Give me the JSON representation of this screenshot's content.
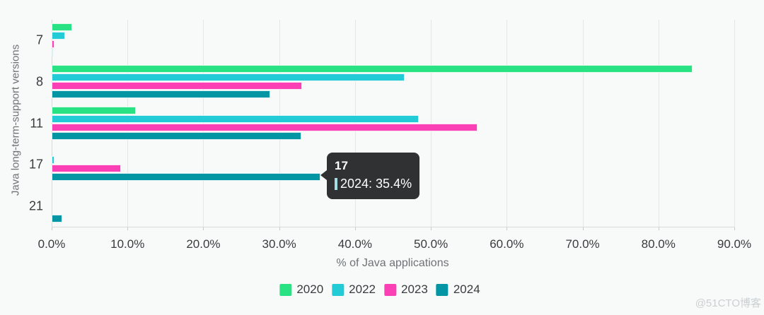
{
  "watermark": "@51CTO博客",
  "tooltip": {
    "title": "17",
    "value_label": "2024: 35.4%",
    "swatch_color": "#0295a4"
  },
  "chart_data": {
    "type": "bar",
    "orientation": "horizontal",
    "title": "",
    "xlabel": "% of Java applications",
    "ylabel": "Java long-term-support versions",
    "categories": [
      "7",
      "8",
      "11",
      "17",
      "21"
    ],
    "series": [
      {
        "name": "2020",
        "color": "#29e283",
        "values": [
          2.7,
          84.5,
          11.1,
          0,
          0
        ]
      },
      {
        "name": "2022",
        "color": "#22cbd6",
        "values": [
          1.8,
          46.5,
          48.4,
          0.4,
          0
        ]
      },
      {
        "name": "2023",
        "color": "#fb40b5",
        "values": [
          0.4,
          33.0,
          56.1,
          9.1,
          0
        ]
      },
      {
        "name": "2024",
        "color": "#0295a4",
        "values": [
          0.2,
          28.8,
          32.9,
          35.4,
          1.4
        ]
      }
    ],
    "xlim": [
      0,
      90
    ],
    "x_ticks": [
      "0.0%",
      "10.0%",
      "20.0%",
      "30.0%",
      "40.0%",
      "50.0%",
      "60.0%",
      "70.0%",
      "80.0%",
      "90.0%"
    ],
    "grid": "vertical-major",
    "legend_position": "bottom"
  }
}
